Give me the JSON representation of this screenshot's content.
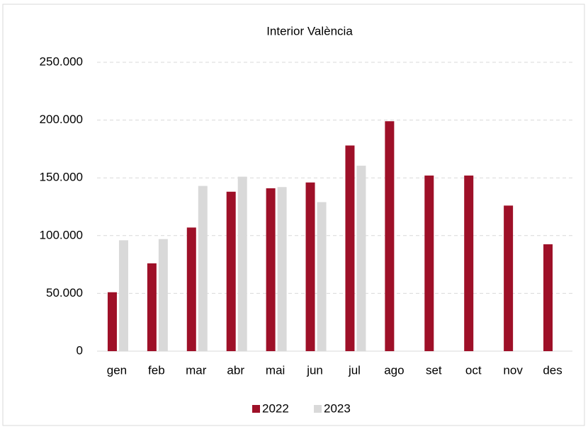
{
  "chart_data": {
    "type": "bar",
    "title": "Interior València",
    "categories": [
      "gen",
      "feb",
      "mar",
      "abr",
      "mai",
      "jun",
      "jul",
      "ago",
      "set",
      "oct",
      "nov",
      "des"
    ],
    "series": [
      {
        "name": "2022",
        "color": "#9e1028",
        "values": [
          51000,
          76000,
          107000,
          138000,
          141000,
          146000,
          178000,
          199000,
          152000,
          152000,
          126000,
          92500
        ]
      },
      {
        "name": "2023",
        "color": "#d9d9d9",
        "values": [
          96000,
          97000,
          143000,
          151000,
          142000,
          129000,
          160500,
          null,
          null,
          null,
          null,
          null
        ]
      }
    ],
    "ylim": [
      0,
      250000
    ],
    "yticks": [
      0,
      {
        "value": 50000,
        "label": "50.000"
      },
      {
        "value": 100000,
        "label": "100.000"
      },
      {
        "value": 150000,
        "label": "150.000"
      },
      {
        "value": 200000,
        "label": "200.000"
      },
      {
        "value": 250000,
        "label": "250.000"
      }
    ],
    "grid": true,
    "legend": "bottom"
  }
}
